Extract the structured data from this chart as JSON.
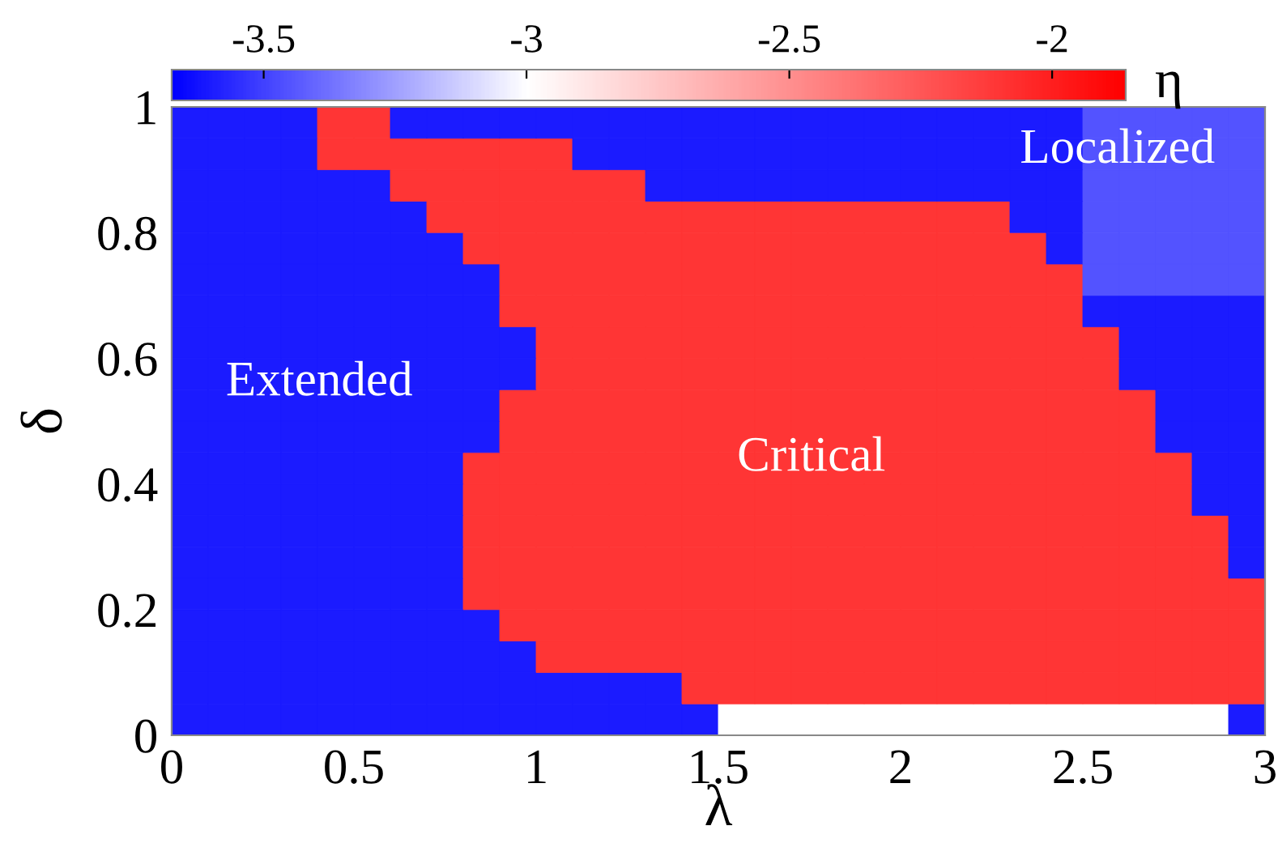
{
  "chart_data": {
    "type": "heatmap",
    "xlabel": "λ",
    "ylabel": "δ",
    "clabel": "η",
    "x": [
      0.05,
      0.15,
      0.25,
      0.35,
      0.45,
      0.55,
      0.65,
      0.75,
      0.85,
      0.95,
      1.05,
      1.15,
      1.25,
      1.35,
      1.45,
      1.55,
      1.65,
      1.75,
      1.85,
      1.95,
      2.05,
      2.15,
      2.25,
      2.35,
      2.45,
      2.55,
      2.65,
      2.75,
      2.85,
      2.95
    ],
    "y": [
      0.975,
      0.925,
      0.875,
      0.825,
      0.775,
      0.725,
      0.675,
      0.625,
      0.575,
      0.525,
      0.475,
      0.425,
      0.375,
      0.325,
      0.275,
      0.225,
      0.175,
      0.125,
      0.075,
      0.025
    ],
    "cells": [
      [
        -3.6,
        -3.6,
        -3.6,
        -3.6,
        -2.1,
        -2.1,
        -3.6,
        -3.6,
        -3.6,
        -3.6,
        -3.6,
        -3.6,
        -3.6,
        -3.6,
        -3.6,
        -3.6,
        -3.6,
        -3.6,
        -3.6,
        -3.6,
        -3.6,
        -3.6,
        -3.6,
        -3.6,
        -3.6,
        -3.45,
        -3.45,
        -3.45,
        -3.45,
        -3.45
      ],
      [
        -3.6,
        -3.6,
        -3.6,
        -3.6,
        -2.1,
        -2.1,
        -2.1,
        -2.1,
        -2.1,
        -2.1,
        -2.1,
        -3.6,
        -3.6,
        -3.6,
        -3.6,
        -3.6,
        -3.6,
        -3.6,
        -3.6,
        -3.6,
        -3.6,
        -3.6,
        -3.6,
        -3.6,
        -3.6,
        -3.45,
        -3.45,
        -3.45,
        -3.45,
        -3.45
      ],
      [
        -3.6,
        -3.6,
        -3.6,
        -3.6,
        -3.6,
        -3.6,
        -2.1,
        -2.1,
        -2.1,
        -2.1,
        -2.1,
        -2.1,
        -2.1,
        -3.6,
        -3.6,
        -3.6,
        -3.6,
        -3.6,
        -3.6,
        -3.6,
        -3.6,
        -3.6,
        -3.6,
        -3.6,
        -3.6,
        -3.45,
        -3.45,
        -3.45,
        -3.45,
        -3.45
      ],
      [
        -3.6,
        -3.6,
        -3.6,
        -3.6,
        -3.6,
        -3.6,
        -3.6,
        -2.1,
        -2.1,
        -2.1,
        -2.1,
        -2.1,
        -2.1,
        -2.1,
        -2.1,
        -2.1,
        -2.1,
        -2.1,
        -2.1,
        -2.1,
        -2.1,
        -2.1,
        -2.1,
        -3.6,
        -3.6,
        -3.45,
        -3.45,
        -3.45,
        -3.45,
        -3.45
      ],
      [
        -3.6,
        -3.6,
        -3.6,
        -3.6,
        -3.6,
        -3.6,
        -3.6,
        -3.6,
        -2.1,
        -2.1,
        -2.1,
        -2.1,
        -2.1,
        -2.1,
        -2.1,
        -2.1,
        -2.1,
        -2.1,
        -2.1,
        -2.1,
        -2.1,
        -2.1,
        -2.1,
        -2.1,
        -3.6,
        -3.45,
        -3.45,
        -3.45,
        -3.45,
        -3.45
      ],
      [
        -3.6,
        -3.6,
        -3.6,
        -3.6,
        -3.6,
        -3.6,
        -3.6,
        -3.6,
        -3.6,
        -2.1,
        -2.1,
        -2.1,
        -2.1,
        -2.1,
        -2.1,
        -2.1,
        -2.1,
        -2.1,
        -2.1,
        -2.1,
        -2.1,
        -2.1,
        -2.1,
        -2.1,
        -2.1,
        -3.45,
        -3.45,
        -3.45,
        -3.45,
        -3.45
      ],
      [
        -3.6,
        -3.6,
        -3.6,
        -3.6,
        -3.6,
        -3.6,
        -3.6,
        -3.6,
        -3.6,
        -2.1,
        -2.1,
        -2.1,
        -2.1,
        -2.1,
        -2.1,
        -2.1,
        -2.1,
        -2.1,
        -2.1,
        -2.1,
        -2.1,
        -2.1,
        -2.1,
        -2.1,
        -2.1,
        -3.6,
        -3.6,
        -3.6,
        -3.6,
        -3.6
      ],
      [
        -3.6,
        -3.6,
        -3.6,
        -3.6,
        -3.6,
        -3.6,
        -3.6,
        -3.6,
        -3.6,
        -3.6,
        -2.1,
        -2.1,
        -2.1,
        -2.1,
        -2.1,
        -2.1,
        -2.1,
        -2.1,
        -2.1,
        -2.1,
        -2.1,
        -2.1,
        -2.1,
        -2.1,
        -2.1,
        -2.1,
        -3.6,
        -3.6,
        -3.6,
        -3.6
      ],
      [
        -3.6,
        -3.6,
        -3.6,
        -3.6,
        -3.6,
        -3.6,
        -3.6,
        -3.6,
        -3.6,
        -3.6,
        -2.1,
        -2.1,
        -2.1,
        -2.1,
        -2.1,
        -2.1,
        -2.1,
        -2.1,
        -2.1,
        -2.1,
        -2.1,
        -2.1,
        -2.1,
        -2.1,
        -2.1,
        -2.1,
        -3.6,
        -3.6,
        -3.6,
        -3.6
      ],
      [
        -3.6,
        -3.6,
        -3.6,
        -3.6,
        -3.6,
        -3.6,
        -3.6,
        -3.6,
        -3.6,
        -2.1,
        -2.1,
        -2.1,
        -2.1,
        -2.1,
        -2.1,
        -2.1,
        -2.1,
        -2.1,
        -2.1,
        -2.1,
        -2.1,
        -2.1,
        -2.1,
        -2.1,
        -2.1,
        -2.1,
        -2.1,
        -3.6,
        -3.6,
        -3.6
      ],
      [
        -3.6,
        -3.6,
        -3.6,
        -3.6,
        -3.6,
        -3.6,
        -3.6,
        -3.6,
        -3.6,
        -2.1,
        -2.1,
        -2.1,
        -2.1,
        -2.1,
        -2.1,
        -2.1,
        -2.1,
        -2.1,
        -2.1,
        -2.1,
        -2.1,
        -2.1,
        -2.1,
        -2.1,
        -2.1,
        -2.1,
        -2.1,
        -3.6,
        -3.6,
        -3.6
      ],
      [
        -3.6,
        -3.6,
        -3.6,
        -3.6,
        -3.6,
        -3.6,
        -3.6,
        -3.6,
        -2.1,
        -2.1,
        -2.1,
        -2.1,
        -2.1,
        -2.1,
        -2.1,
        -2.1,
        -2.1,
        -2.1,
        -2.1,
        -2.1,
        -2.1,
        -2.1,
        -2.1,
        -2.1,
        -2.1,
        -2.1,
        -2.1,
        -2.1,
        -3.6,
        -3.6
      ],
      [
        -3.6,
        -3.6,
        -3.6,
        -3.6,
        -3.6,
        -3.6,
        -3.6,
        -3.6,
        -2.1,
        -2.1,
        -2.1,
        -2.1,
        -2.1,
        -2.1,
        -2.1,
        -2.1,
        -2.1,
        -2.1,
        -2.1,
        -2.1,
        -2.1,
        -2.1,
        -2.1,
        -2.1,
        -2.1,
        -2.1,
        -2.1,
        -2.1,
        -3.6,
        -3.6
      ],
      [
        -3.6,
        -3.6,
        -3.6,
        -3.6,
        -3.6,
        -3.6,
        -3.6,
        -3.6,
        -2.1,
        -2.1,
        -2.1,
        -2.1,
        -2.1,
        -2.1,
        -2.1,
        -2.1,
        -2.1,
        -2.1,
        -2.1,
        -2.1,
        -2.1,
        -2.1,
        -2.1,
        -2.1,
        -2.1,
        -2.1,
        -2.1,
        -2.1,
        -2.1,
        -3.6
      ],
      [
        -3.6,
        -3.6,
        -3.6,
        -3.6,
        -3.6,
        -3.6,
        -3.6,
        -3.6,
        -2.1,
        -2.1,
        -2.1,
        -2.1,
        -2.1,
        -2.1,
        -2.1,
        -2.1,
        -2.1,
        -2.1,
        -2.1,
        -2.1,
        -2.1,
        -2.1,
        -2.1,
        -2.1,
        -2.1,
        -2.1,
        -2.1,
        -2.1,
        -2.1,
        -3.6
      ],
      [
        -3.6,
        -3.6,
        -3.6,
        -3.6,
        -3.6,
        -3.6,
        -3.6,
        -3.6,
        -2.1,
        -2.1,
        -2.1,
        -2.1,
        -2.1,
        -2.1,
        -2.1,
        -2.1,
        -2.1,
        -2.1,
        -2.1,
        -2.1,
        -2.1,
        -2.1,
        -2.1,
        -2.1,
        -2.1,
        -2.1,
        -2.1,
        -2.1,
        -2.1,
        -2.1
      ],
      [
        -3.6,
        -3.6,
        -3.6,
        -3.6,
        -3.6,
        -3.6,
        -3.6,
        -3.6,
        -3.6,
        -2.1,
        -2.1,
        -2.1,
        -2.1,
        -2.1,
        -2.1,
        -2.1,
        -2.1,
        -2.1,
        -2.1,
        -2.1,
        -2.1,
        -2.1,
        -2.1,
        -2.1,
        -2.1,
        -2.1,
        -2.1,
        -2.1,
        -2.1,
        -2.1
      ],
      [
        -3.6,
        -3.6,
        -3.6,
        -3.6,
        -3.6,
        -3.6,
        -3.6,
        -3.6,
        -3.6,
        -3.6,
        -2.1,
        -2.1,
        -2.1,
        -2.1,
        -2.1,
        -2.1,
        -2.1,
        -2.1,
        -2.1,
        -2.1,
        -2.1,
        -2.1,
        -2.1,
        -2.1,
        -2.1,
        -2.1,
        -2.1,
        -2.1,
        -2.1,
        -2.1
      ],
      [
        -3.6,
        -3.6,
        -3.6,
        -3.6,
        -3.6,
        -3.6,
        -3.6,
        -3.6,
        -3.6,
        -3.6,
        -3.6,
        -3.6,
        -3.6,
        -3.6,
        -2.1,
        -2.1,
        -2.1,
        -2.1,
        -2.1,
        -2.1,
        -2.1,
        -2.1,
        -2.1,
        -2.1,
        -2.1,
        -2.1,
        -2.1,
        -2.1,
        -2.1,
        -2.1
      ],
      [
        -3.6,
        -3.6,
        -3.6,
        -3.6,
        -3.6,
        -3.6,
        -3.6,
        -3.6,
        -3.6,
        -3.6,
        -3.6,
        -3.6,
        -3.6,
        -3.6,
        -3.6,
        -3.0,
        -3.0,
        -3.0,
        -3.0,
        -3.0,
        -3.0,
        -3.0,
        -3.0,
        -3.0,
        -3.0,
        -3.0,
        -3.0,
        -3.0,
        -3.0,
        -3.6
      ]
    ],
    "xlim": [
      0,
      3
    ],
    "xticks": [
      0,
      0.5,
      1,
      1.5,
      2,
      2.5,
      3
    ],
    "ylim": [
      0,
      1
    ],
    "yticks": [
      0,
      0.2,
      0.4,
      0.6,
      0.8,
      1
    ],
    "clim": [
      -3.675,
      -1.86
    ],
    "cticks": [
      -3.5,
      -3,
      -2.5,
      -2
    ],
    "annotations": [
      "Extended",
      "Critical",
      "Localized"
    ]
  }
}
